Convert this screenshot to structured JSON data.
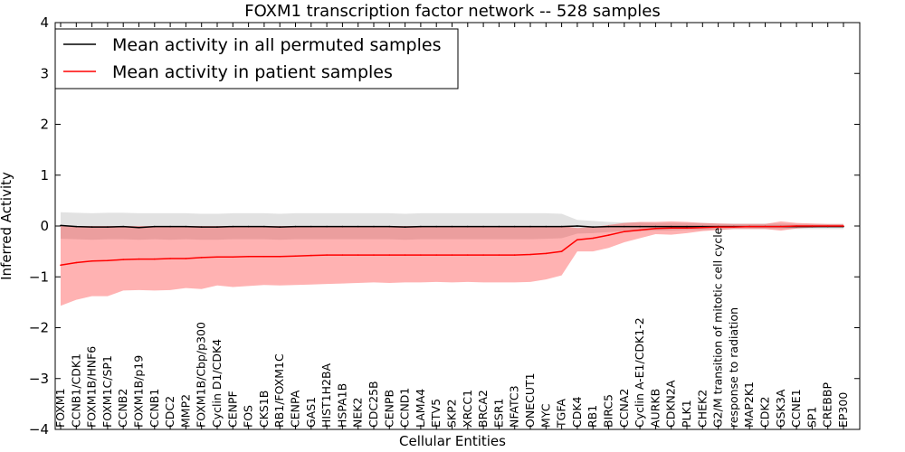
{
  "chart_data": {
    "type": "line",
    "title": "FOXM1 transcription factor network -- 528 samples",
    "xlabel": "Cellular Entities",
    "ylabel": "Inferred Activity",
    "ylim": [
      -4,
      4
    ],
    "yticks": [
      -4,
      -3,
      -2,
      -1,
      0,
      1,
      2,
      3,
      4
    ],
    "ytick_labels": [
      "−4",
      "−3",
      "−2",
      "−1",
      "0",
      "1",
      "2",
      "3",
      "4"
    ],
    "grid": false,
    "legend_position": "top-left",
    "categories": [
      "FOXM1",
      "CCNB1/CDK1",
      "FOXM1B/HNF6",
      "FOXM1C/SP1",
      "CCNB2",
      "FOXM1B/p19",
      "CCNB1",
      "CDC2",
      "MMP2",
      "FOXM1B/Cbp/p300",
      "Cyclin D1/CDK4",
      "CENPF",
      "FOS",
      "CKS1B",
      "RB1/FOXM1C",
      "CENPA",
      "GAS1",
      "HIST1H2BA",
      "HSPA1B",
      "NEK2",
      "CDC25B",
      "CENPB",
      "CCND1",
      "LAMA4",
      "ETV5",
      "SKP2",
      "XRCC1",
      "BRCA2",
      "ESR1",
      "NFATC3",
      "ONECUT1",
      "MYC",
      "TGFA",
      "CDK4",
      "RB1",
      "BIRC5",
      "CCNA2",
      "Cyclin A-E1/CDK1-2",
      "AURKB",
      "CDKN2A",
      "PLK1",
      "CHEK2",
      "G2/M transition of mitotic cell cycle",
      "response to radiation",
      "MAP2K1",
      "CDK2",
      "GSK3A",
      "CCNE1",
      "SP1",
      "CREBBP",
      "EP300"
    ],
    "series": [
      {
        "name": "Mean activity in all permuted samples",
        "color": "#000000",
        "band_color": "#bfbfbf",
        "values": [
          0.01,
          -0.01,
          -0.02,
          -0.02,
          -0.01,
          -0.03,
          -0.01,
          -0.01,
          -0.01,
          -0.02,
          -0.02,
          -0.01,
          -0.01,
          -0.01,
          -0.02,
          -0.01,
          -0.01,
          -0.01,
          -0.01,
          -0.01,
          -0.01,
          -0.01,
          -0.02,
          -0.01,
          -0.01,
          -0.01,
          -0.01,
          -0.01,
          -0.01,
          -0.01,
          -0.01,
          -0.01,
          -0.01,
          0.0,
          -0.02,
          -0.01,
          -0.01,
          -0.01,
          -0.01,
          -0.01,
          -0.01,
          -0.01,
          -0.01,
          -0.01,
          -0.01,
          -0.01,
          -0.01,
          -0.01,
          -0.01,
          -0.01,
          -0.01
        ],
        "lower": [
          -0.25,
          -0.26,
          -0.27,
          -0.26,
          -0.26,
          -0.27,
          -0.26,
          -0.27,
          -0.26,
          -0.27,
          -0.27,
          -0.26,
          -0.26,
          -0.26,
          -0.27,
          -0.26,
          -0.26,
          -0.26,
          -0.26,
          -0.26,
          -0.26,
          -0.26,
          -0.27,
          -0.26,
          -0.26,
          -0.26,
          -0.26,
          -0.26,
          -0.26,
          -0.26,
          -0.26,
          -0.25,
          -0.24,
          -0.15,
          -0.14,
          -0.12,
          -0.1,
          -0.1,
          -0.09,
          -0.09,
          -0.08,
          -0.08,
          -0.07,
          -0.06,
          -0.06,
          -0.06,
          -0.06,
          -0.06,
          -0.06,
          -0.06,
          -0.06
        ],
        "upper": [
          0.27,
          0.26,
          0.25,
          0.26,
          0.26,
          0.25,
          0.25,
          0.25,
          0.25,
          0.24,
          0.24,
          0.25,
          0.25,
          0.25,
          0.24,
          0.25,
          0.25,
          0.25,
          0.25,
          0.25,
          0.25,
          0.25,
          0.24,
          0.25,
          0.25,
          0.25,
          0.25,
          0.25,
          0.25,
          0.25,
          0.25,
          0.25,
          0.24,
          0.12,
          0.1,
          0.08,
          0.07,
          0.07,
          0.06,
          0.06,
          0.06,
          0.06,
          0.05,
          0.05,
          0.05,
          0.05,
          0.05,
          0.04,
          0.04,
          0.04,
          0.04
        ]
      },
      {
        "name": "Mean activity in patient samples",
        "color": "#ff0000",
        "band_color": "#ff0000",
        "values": [
          -0.77,
          -0.72,
          -0.69,
          -0.68,
          -0.66,
          -0.65,
          -0.65,
          -0.64,
          -0.64,
          -0.62,
          -0.61,
          -0.61,
          -0.6,
          -0.6,
          -0.6,
          -0.59,
          -0.58,
          -0.57,
          -0.57,
          -0.57,
          -0.57,
          -0.57,
          -0.57,
          -0.57,
          -0.57,
          -0.57,
          -0.57,
          -0.57,
          -0.57,
          -0.57,
          -0.56,
          -0.54,
          -0.5,
          -0.27,
          -0.24,
          -0.18,
          -0.11,
          -0.08,
          -0.05,
          -0.04,
          -0.04,
          -0.03,
          -0.02,
          -0.02,
          -0.01,
          -0.01,
          -0.01,
          0.0,
          0.0,
          0.0,
          0.0
        ],
        "lower": [
          -1.57,
          -1.45,
          -1.38,
          -1.38,
          -1.27,
          -1.26,
          -1.27,
          -1.26,
          -1.22,
          -1.24,
          -1.17,
          -1.2,
          -1.18,
          -1.16,
          -1.17,
          -1.16,
          -1.15,
          -1.14,
          -1.13,
          -1.12,
          -1.11,
          -1.12,
          -1.11,
          -1.11,
          -1.1,
          -1.11,
          -1.1,
          -1.11,
          -1.11,
          -1.11,
          -1.1,
          -1.05,
          -0.97,
          -0.5,
          -0.5,
          -0.43,
          -0.32,
          -0.24,
          -0.16,
          -0.17,
          -0.14,
          -0.1,
          -0.08,
          -0.06,
          -0.06,
          -0.06,
          -0.09,
          -0.05,
          -0.03,
          -0.02,
          -0.02
        ],
        "upper": [
          0.0,
          0.0,
          0.0,
          0.0,
          0.0,
          0.0,
          0.0,
          0.0,
          0.0,
          0.0,
          0.0,
          0.0,
          0.0,
          0.0,
          0.0,
          0.0,
          0.0,
          0.0,
          0.0,
          0.0,
          0.0,
          0.0,
          0.0,
          0.0,
          0.0,
          0.0,
          0.0,
          0.0,
          0.0,
          0.0,
          0.0,
          0.0,
          0.0,
          -0.04,
          -0.02,
          0.02,
          0.06,
          0.08,
          0.08,
          0.09,
          0.08,
          0.06,
          0.05,
          0.04,
          0.04,
          0.04,
          0.09,
          0.06,
          0.05,
          0.04,
          0.04
        ]
      }
    ]
  }
}
